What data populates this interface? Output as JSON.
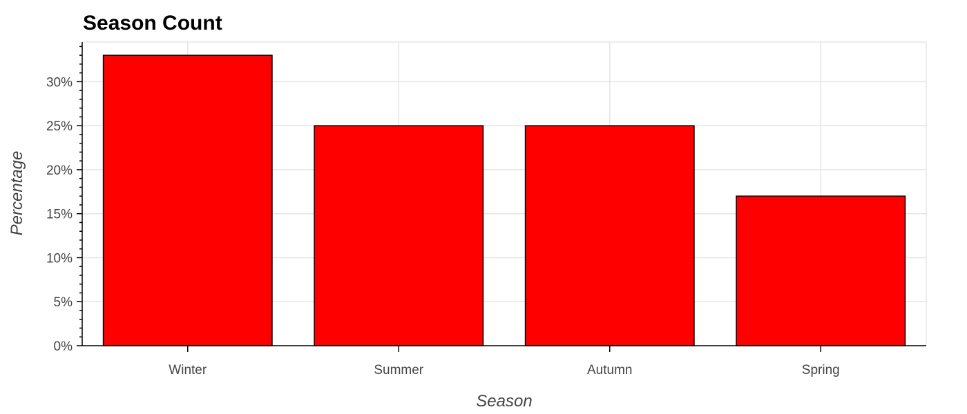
{
  "chart_data": {
    "type": "bar",
    "title": "Season Count",
    "xlabel": "Season",
    "ylabel": "Percentage",
    "categories": [
      "Winter",
      "Summer",
      "Autumn",
      "Spring"
    ],
    "values": [
      33,
      25,
      25,
      17
    ],
    "ylim": [
      0,
      34.5
    ],
    "yticks": [
      0,
      5,
      10,
      15,
      20,
      25,
      30
    ],
    "ytick_labels": [
      "0%",
      "5%",
      "10%",
      "15%",
      "20%",
      "25%",
      "30%"
    ],
    "bar_color": "#ff0000",
    "bar_outline_color": "#000000",
    "grid": true
  }
}
